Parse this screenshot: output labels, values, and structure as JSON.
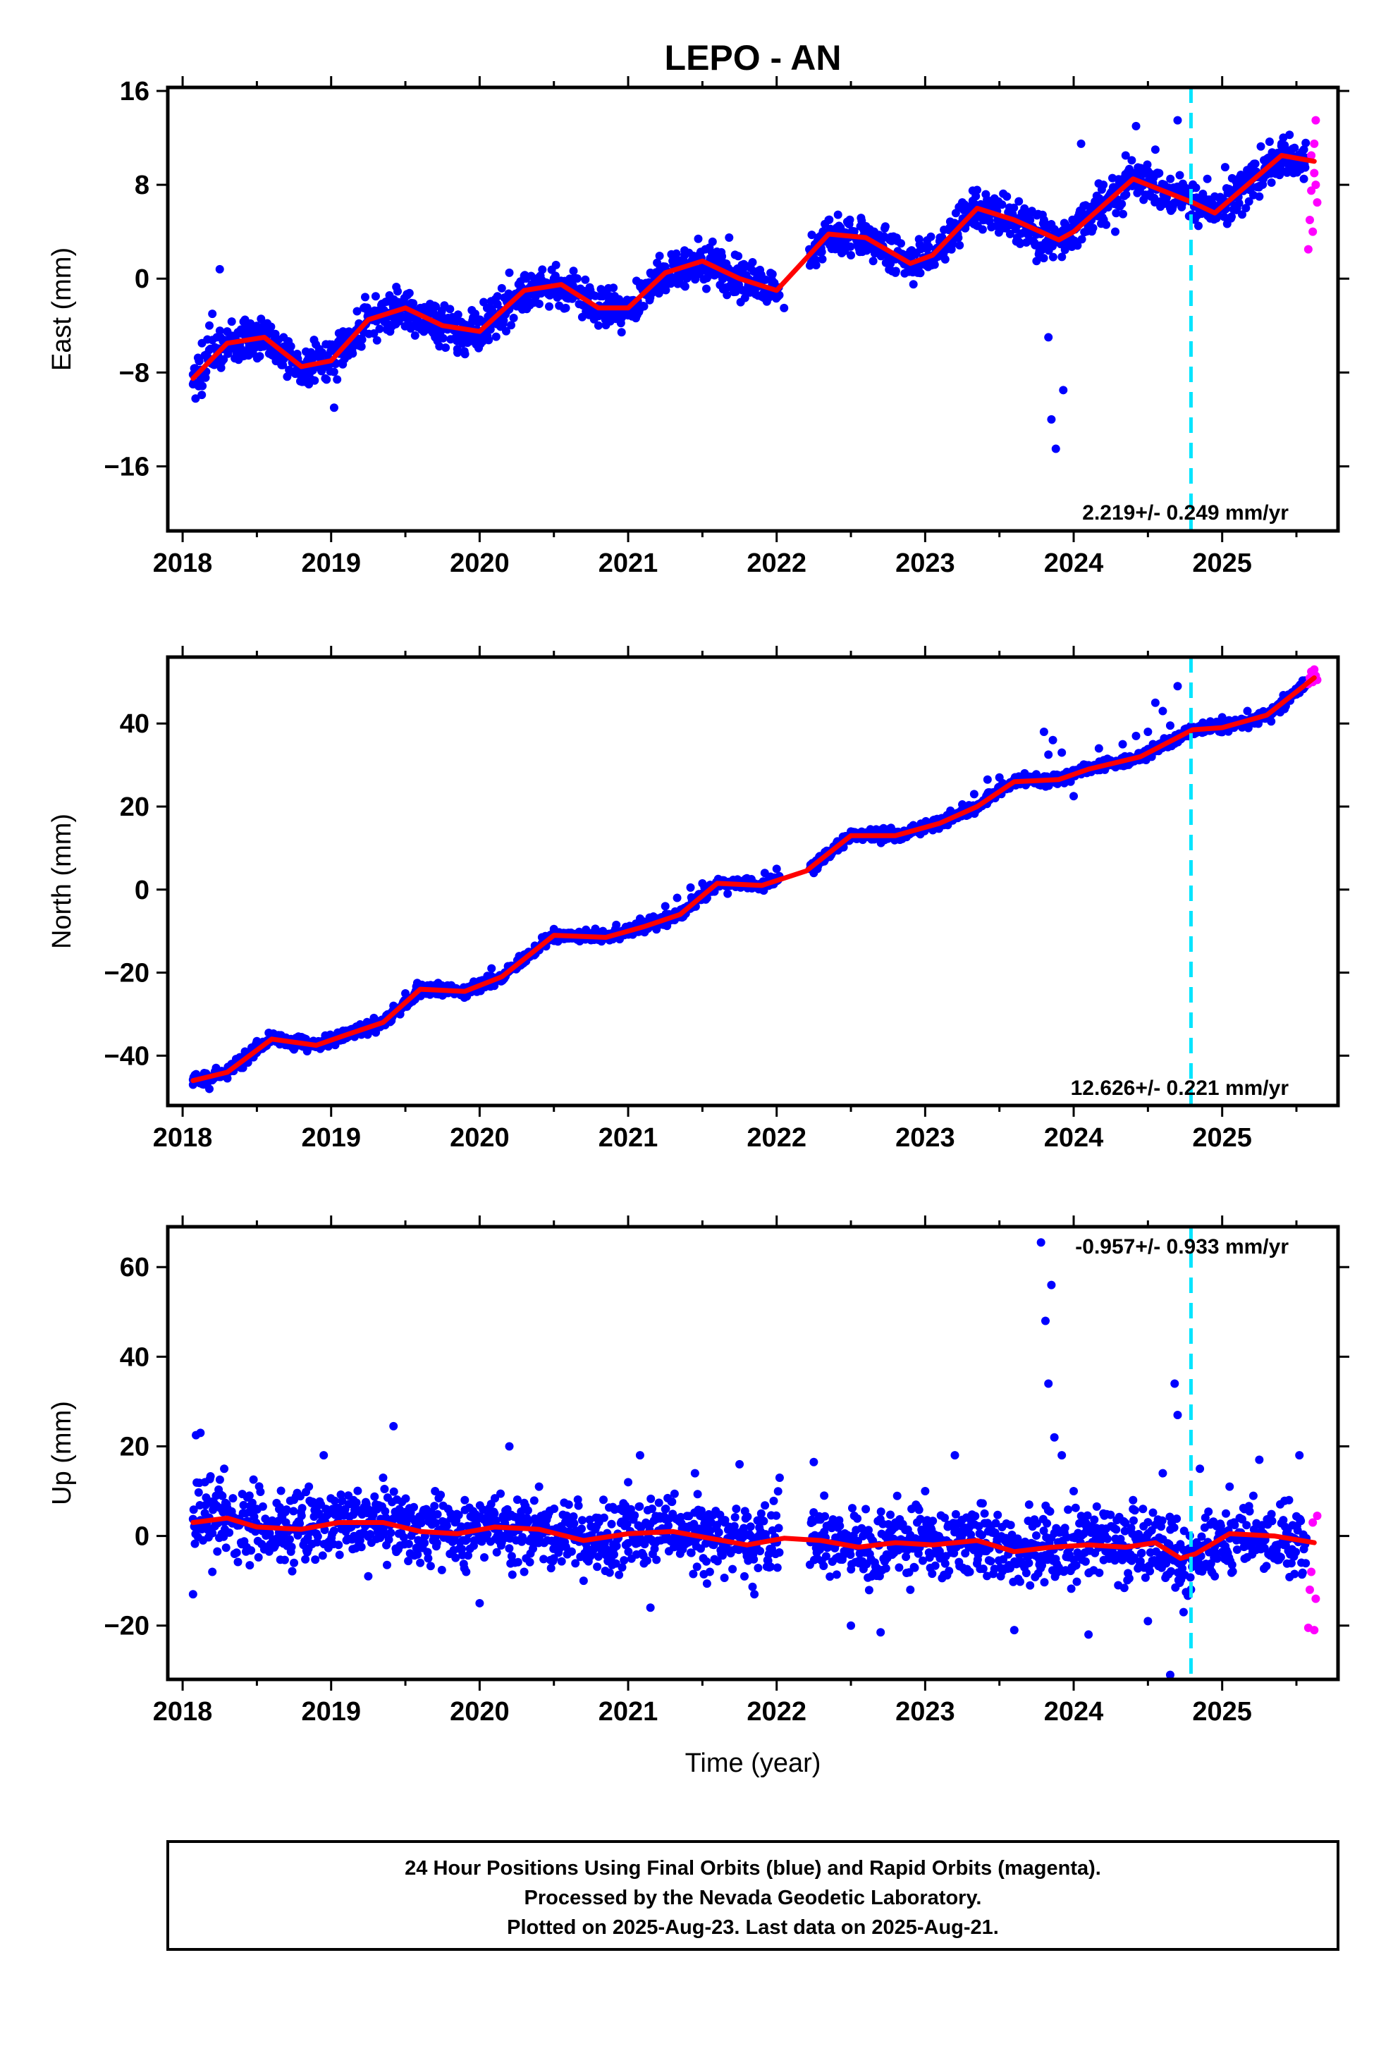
{
  "title": "LEPO - AN",
  "colors": {
    "final_orbits": "#0000ff",
    "rapid_orbits": "#ff00ff",
    "model_fit": "#ff0000",
    "equipment_change": "#00e5ff",
    "axes": "#000000"
  },
  "chart_data": [
    {
      "type": "scatter",
      "component": "East",
      "ylabel": "East (mm)",
      "xlabel": "",
      "xlim": [
        2017.9,
        2025.78
      ],
      "ylim": [
        -21.5,
        16.3
      ],
      "xticks": [
        2018,
        2019,
        2020,
        2021,
        2022,
        2023,
        2024,
        2025
      ],
      "xtick_labels": [
        "2018",
        "2019",
        "2020",
        "2021",
        "2022",
        "2023",
        "2024",
        "2025"
      ],
      "yticks": [
        -16,
        -8,
        0,
        8,
        16
      ],
      "ytick_labels": [
        "−16",
        "−8",
        "0",
        "8",
        "16"
      ],
      "rate_label": "2.219+/- 0.249 mm/yr",
      "equipment_change_year": 2024.79,
      "grid": false,
      "model_fit": {
        "x": [
          2018.07,
          2018.3,
          2018.55,
          2018.8,
          2019.0,
          2019.25,
          2019.5,
          2019.75,
          2020.0,
          2020.3,
          2020.55,
          2020.8,
          2021.0,
          2021.25,
          2021.5,
          2021.75,
          2022.0,
          2022.35,
          2022.6,
          2022.9,
          2023.05,
          2023.35,
          2023.6,
          2023.9,
          2024.0,
          2024.4,
          2024.8,
          2024.95,
          2025.4,
          2025.62
        ],
        "y": [
          -8.5,
          -5.5,
          -5.0,
          -7.5,
          -7.0,
          -3.5,
          -2.5,
          -4.0,
          -4.5,
          -1.0,
          -0.5,
          -2.5,
          -2.5,
          0.5,
          1.5,
          0.0,
          -1.0,
          3.8,
          3.5,
          1.3,
          2.0,
          6.0,
          5.0,
          3.3,
          4.0,
          8.5,
          6.5,
          5.6,
          10.5,
          10.0
        ]
      },
      "final_orbits": [
        {
          "x": [
            2018.07,
            2018.11,
            2018.13,
            2018.16,
            2018.18,
            2018.2,
            2018.23,
            2018.25,
            2018.3,
            2018.35,
            2018.42,
            2018.5,
            2018.55,
            2018.6,
            2018.68,
            2018.75,
            2018.8,
            2018.85,
            2018.92,
            2018.96,
            2019.02,
            2019.08,
            2019.15,
            2019.22,
            2019.3,
            2019.38,
            2019.45,
            2019.52,
            2019.6,
            2019.7,
            2019.78,
            2019.85,
            2019.9,
            2019.97,
            2020.05,
            2020.12,
            2020.2,
            2020.28,
            2020.35,
            2020.42,
            2020.5,
            2020.58,
            2020.65,
            2020.72,
            2020.8,
            2020.88,
            2020.95,
            2021.02,
            2021.08,
            2021.15,
            2021.22,
            2021.3,
            2021.38,
            2021.45,
            2021.52,
            2021.6,
            2021.68,
            2021.75,
            2021.82,
            2021.9,
            2021.97,
            2022.05,
            2022.22,
            2022.28,
            2022.35,
            2022.42,
            2022.5,
            2022.58,
            2022.65,
            2022.72,
            2022.8,
            2022.88,
            2022.95,
            2023.02,
            2023.1,
            2023.18,
            2023.25,
            2023.32,
            2023.4,
            2023.48,
            2023.55,
            2023.62,
            2023.68,
            2023.75,
            2023.8,
            2023.83,
            2023.85,
            2023.88,
            2023.93,
            2024.0,
            2024.05,
            2024.12,
            2024.2,
            2024.28,
            2024.35,
            2024.42,
            2024.5,
            2024.55,
            2024.6,
            2024.65,
            2024.7,
            2024.84,
            2024.9,
            2024.95,
            2025.02,
            2025.1,
            2025.18,
            2025.25,
            2025.32,
            2025.4,
            2025.48,
            2025.55
          ],
          "y": [
            -9.0,
            -7.0,
            -5.5,
            -6.5,
            -4.0,
            -3.0,
            -5.0,
            0.8,
            -4.5,
            -6.0,
            -3.5,
            -5.5,
            -4.0,
            -6.5,
            -5.0,
            -8.0,
            -7.5,
            -9.0,
            -6.0,
            -7.5,
            -11.0,
            -4.5,
            -5.0,
            -2.5,
            -1.5,
            -4.0,
            -2.0,
            -3.5,
            -2.5,
            -5.0,
            -3.5,
            -6.0,
            -4.5,
            -3.0,
            -2.5,
            -1.5,
            0.5,
            -2.0,
            -0.5,
            -1.0,
            0.0,
            -2.5,
            -1.0,
            -2.5,
            -4.0,
            -1.5,
            -3.5,
            -2.0,
            -0.5,
            0.5,
            -1.0,
            1.5,
            2.0,
            0.5,
            2.5,
            1.0,
            3.5,
            0.5,
            -0.5,
            -1.5,
            -0.5,
            -2.5,
            2.5,
            3.5,
            5.0,
            4.5,
            2.0,
            3.0,
            1.5,
            3.5,
            0.5,
            2.0,
            0.5,
            1.0,
            3.5,
            4.5,
            6.5,
            7.5,
            5.0,
            4.5,
            7.0,
            3.5,
            5.5,
            1.5,
            5.0,
            -5.0,
            -12.0,
            -14.5,
            -9.5,
            3.0,
            11.5,
            5.0,
            8.0,
            4.0,
            10.5,
            13.0,
            9.0,
            11.0,
            8.0,
            6.0,
            13.5,
            4.5,
            8.5,
            7.0,
            9.5,
            6.0,
            8.5,
            7.0,
            10.0,
            11.5,
            9.0,
            8.5
          ]
        }
      ],
      "rapid_orbits": {
        "x": [
          2025.58,
          2025.59,
          2025.6,
          2025.6,
          2025.61,
          2025.62,
          2025.62,
          2025.63,
          2025.63,
          2025.64
        ],
        "y": [
          2.5,
          5.0,
          7.5,
          10.5,
          4.0,
          9.0,
          11.5,
          8.0,
          13.5,
          6.5
        ]
      }
    },
    {
      "type": "scatter",
      "component": "North",
      "ylabel": "North (mm)",
      "xlabel": "",
      "xlim": [
        2017.9,
        2025.78
      ],
      "ylim": [
        -52,
        56
      ],
      "xticks": [
        2018,
        2019,
        2020,
        2021,
        2022,
        2023,
        2024,
        2025
      ],
      "xtick_labels": [
        "2018",
        "2019",
        "2020",
        "2021",
        "2022",
        "2023",
        "2024",
        "2025"
      ],
      "yticks": [
        -40,
        -20,
        0,
        20,
        40
      ],
      "ytick_labels": [
        "−40",
        "−20",
        "0",
        "20",
        "40"
      ],
      "rate_label": "12.626+/- 0.221 mm/yr",
      "equipment_change_year": 2024.79,
      "grid": false,
      "model_fit": {
        "x": [
          2018.07,
          2018.3,
          2018.6,
          2018.9,
          2019.1,
          2019.35,
          2019.6,
          2019.9,
          2020.15,
          2020.5,
          2020.85,
          2021.1,
          2021.35,
          2021.6,
          2021.9,
          2022.2,
          2022.5,
          2022.8,
          2023.1,
          2023.35,
          2023.6,
          2023.9,
          2024.1,
          2024.45,
          2024.8,
          2025.0,
          2025.3,
          2025.62
        ],
        "y": [
          -46.0,
          -44.0,
          -36.0,
          -37.5,
          -35.0,
          -32.0,
          -24.0,
          -24.5,
          -21.0,
          -11.0,
          -11.5,
          -9.0,
          -6.0,
          1.5,
          1.0,
          4.5,
          13.0,
          13.0,
          16.0,
          20.0,
          26.0,
          26.5,
          29.0,
          32.0,
          38.5,
          39.0,
          42.0,
          51.0
        ]
      },
      "final_orbits": [
        {
          "x": [
            2018.07,
            2018.12,
            2018.18,
            2018.25,
            2018.33,
            2018.42,
            2018.5,
            2018.58,
            2018.66,
            2018.75,
            2018.83,
            2018.92,
            2019.0,
            2019.08,
            2019.17,
            2019.25,
            2019.33,
            2019.42,
            2019.5,
            2019.58,
            2019.67,
            2019.75,
            2019.83,
            2019.92,
            2020.0,
            2020.08,
            2020.17,
            2020.25,
            2020.33,
            2020.42,
            2020.5,
            2020.58,
            2020.67,
            2020.75,
            2020.83,
            2020.92,
            2021.0,
            2021.08,
            2021.17,
            2021.25,
            2021.33,
            2021.42,
            2021.5,
            2021.58,
            2021.67,
            2021.75,
            2021.83,
            2021.92,
            2022.0,
            2022.25,
            2022.33,
            2022.42,
            2022.5,
            2022.58,
            2022.67,
            2022.75,
            2022.83,
            2022.92,
            2023.0,
            2023.08,
            2023.17,
            2023.25,
            2023.33,
            2023.42,
            2023.5,
            2023.58,
            2023.67,
            2023.75,
            2023.8,
            2023.83,
            2023.86,
            2023.92,
            2024.0,
            2024.08,
            2024.17,
            2024.25,
            2024.33,
            2024.42,
            2024.5,
            2024.55,
            2024.6,
            2024.65,
            2024.7,
            2024.84,
            2024.92,
            2025.0,
            2025.08,
            2025.17,
            2025.25,
            2025.33,
            2025.42,
            2025.5
          ],
          "y": [
            -47.0,
            -45.5,
            -48.0,
            -44.0,
            -42.0,
            -39.0,
            -36.5,
            -34.5,
            -37.0,
            -38.5,
            -36.0,
            -37.0,
            -35.5,
            -34.0,
            -33.0,
            -34.5,
            -32.5,
            -28.0,
            -25.0,
            -22.5,
            -23.0,
            -25.5,
            -24.0,
            -23.5,
            -22.0,
            -19.0,
            -20.5,
            -19.0,
            -15.0,
            -11.5,
            -9.5,
            -10.5,
            -12.0,
            -11.0,
            -10.0,
            -8.5,
            -9.0,
            -7.0,
            -6.5,
            -4.0,
            -2.0,
            0.5,
            1.5,
            0.0,
            -1.0,
            1.5,
            2.5,
            4.0,
            5.0,
            4.0,
            8.0,
            11.0,
            14.0,
            12.0,
            14.5,
            13.0,
            12.0,
            15.5,
            15.0,
            17.0,
            19.0,
            20.5,
            23.0,
            26.5,
            27.0,
            25.5,
            28.0,
            26.0,
            38.0,
            32.5,
            36.0,
            33.0,
            22.5,
            30.0,
            34.0,
            31.0,
            35.0,
            37.0,
            38.0,
            45.0,
            43.0,
            39.5,
            49.0,
            38.0,
            40.5,
            41.5,
            39.0,
            43.0,
            42.5,
            40.5,
            43.5,
            47.0
          ]
        }
      ],
      "rapid_orbits": {
        "x": [
          2025.58,
          2025.59,
          2025.6,
          2025.61,
          2025.62,
          2025.63,
          2025.64
        ],
        "y": [
          49.5,
          51.0,
          52.5,
          50.0,
          53.0,
          51.5,
          50.5
        ]
      }
    },
    {
      "type": "scatter",
      "component": "Up",
      "ylabel": "Up (mm)",
      "xlabel": "Time (year)",
      "xlim": [
        2017.9,
        2025.78
      ],
      "ylim": [
        -32,
        69
      ],
      "xticks": [
        2018,
        2019,
        2020,
        2021,
        2022,
        2023,
        2024,
        2025
      ],
      "xtick_labels": [
        "2018",
        "2019",
        "2020",
        "2021",
        "2022",
        "2023",
        "2024",
        "2025"
      ],
      "yticks": [
        -20,
        0,
        20,
        40,
        60
      ],
      "ytick_labels": [
        "−20",
        "0",
        "20",
        "40",
        "60"
      ],
      "rate_label": "-0.957+/- 0.933 mm/yr",
      "equipment_change_year": 2024.79,
      "grid": false,
      "model_fit": {
        "x": [
          2018.07,
          2018.3,
          2018.5,
          2018.8,
          2019.05,
          2019.35,
          2019.6,
          2019.85,
          2020.1,
          2020.4,
          2020.7,
          2021.0,
          2021.3,
          2021.55,
          2021.8,
          2022.05,
          2022.3,
          2022.55,
          2022.8,
          2023.05,
          2023.35,
          2023.6,
          2023.85,
          2024.1,
          2024.35,
          2024.55,
          2024.72,
          2024.82,
          2025.05,
          2025.35,
          2025.62
        ],
        "y": [
          3.0,
          4.0,
          2.0,
          1.5,
          3.0,
          3.0,
          1.0,
          0.5,
          2.0,
          1.5,
          -1.0,
          0.5,
          1.0,
          -0.5,
          -2.0,
          -0.5,
          -1.0,
          -2.5,
          -1.5,
          -2.0,
          -1.0,
          -3.5,
          -2.5,
          -2.0,
          -2.5,
          -1.5,
          -5.0,
          -4.0,
          0.5,
          0.0,
          -1.5
        ]
      },
      "final_orbits": [
        {
          "x": [
            2018.07,
            2018.09,
            2018.12,
            2018.15,
            2018.2,
            2018.28,
            2018.35,
            2018.45,
            2018.55,
            2018.65,
            2018.75,
            2018.85,
            2018.95,
            2019.05,
            2019.15,
            2019.25,
            2019.35,
            2019.42,
            2019.5,
            2019.6,
            2019.7,
            2019.8,
            2019.9,
            2020.0,
            2020.1,
            2020.2,
            2020.3,
            2020.4,
            2020.5,
            2020.6,
            2020.7,
            2020.8,
            2020.9,
            2021.0,
            2021.08,
            2021.15,
            2021.25,
            2021.35,
            2021.45,
            2021.55,
            2021.65,
            2021.75,
            2021.85,
            2021.95,
            2022.02,
            2022.25,
            2022.32,
            2022.4,
            2022.5,
            2022.6,
            2022.7,
            2022.8,
            2022.9,
            2023.0,
            2023.1,
            2023.2,
            2023.3,
            2023.4,
            2023.5,
            2023.6,
            2023.7,
            2023.78,
            2023.81,
            2023.83,
            2023.85,
            2023.87,
            2023.92,
            2024.0,
            2024.1,
            2024.2,
            2024.3,
            2024.4,
            2024.5,
            2024.6,
            2024.65,
            2024.68,
            2024.7,
            2024.74,
            2024.85,
            2024.95,
            2025.05,
            2025.15,
            2025.25,
            2025.35,
            2025.45,
            2025.52
          ],
          "y": [
            -13.0,
            22.5,
            23.0,
            12.0,
            -8.0,
            15.0,
            -4.0,
            9.0,
            -3.0,
            6.0,
            -6.0,
            11.0,
            18.0,
            -2.0,
            8.0,
            -9.0,
            13.0,
            24.5,
            4.0,
            -6.0,
            10.0,
            -4.0,
            8.0,
            -15.0,
            5.0,
            20.0,
            -8.0,
            11.0,
            -5.0,
            7.0,
            -10.0,
            4.0,
            -3.0,
            12.0,
            18.0,
            -16.0,
            6.0,
            -2.0,
            14.0,
            -8.0,
            3.0,
            16.0,
            -13.0,
            -7.0,
            13.0,
            16.5,
            9.0,
            -5.0,
            -20.0,
            6.0,
            -21.5,
            3.0,
            -12.0,
            10.0,
            -5.0,
            18.0,
            -8.0,
            5.0,
            -3.0,
            -21.0,
            7.0,
            65.5,
            48.0,
            34.0,
            56.0,
            22.0,
            18.0,
            10.0,
            -22.0,
            5.0,
            -11.0,
            8.0,
            -19.0,
            14.0,
            -31.0,
            34.0,
            27.0,
            -17.0,
            15.0,
            -9.0,
            11.0,
            6.0,
            17.0,
            -5.0,
            8.0,
            18.0
          ]
        }
      ],
      "rapid_orbits": {
        "x": [
          2025.58,
          2025.59,
          2025.6,
          2025.61,
          2025.62,
          2025.63,
          2025.64
        ],
        "y": [
          -20.5,
          -12.0,
          -8.0,
          3.0,
          -21.0,
          -14.0,
          4.5
        ]
      }
    }
  ],
  "footer": {
    "line1": "24 Hour Positions Using Final Orbits (blue) and Rapid Orbits (magenta).",
    "line2": "Processed by the Nevada Geodetic Laboratory.",
    "line3": "Plotted on 2025-Aug-23. Last data on 2025-Aug-21."
  }
}
